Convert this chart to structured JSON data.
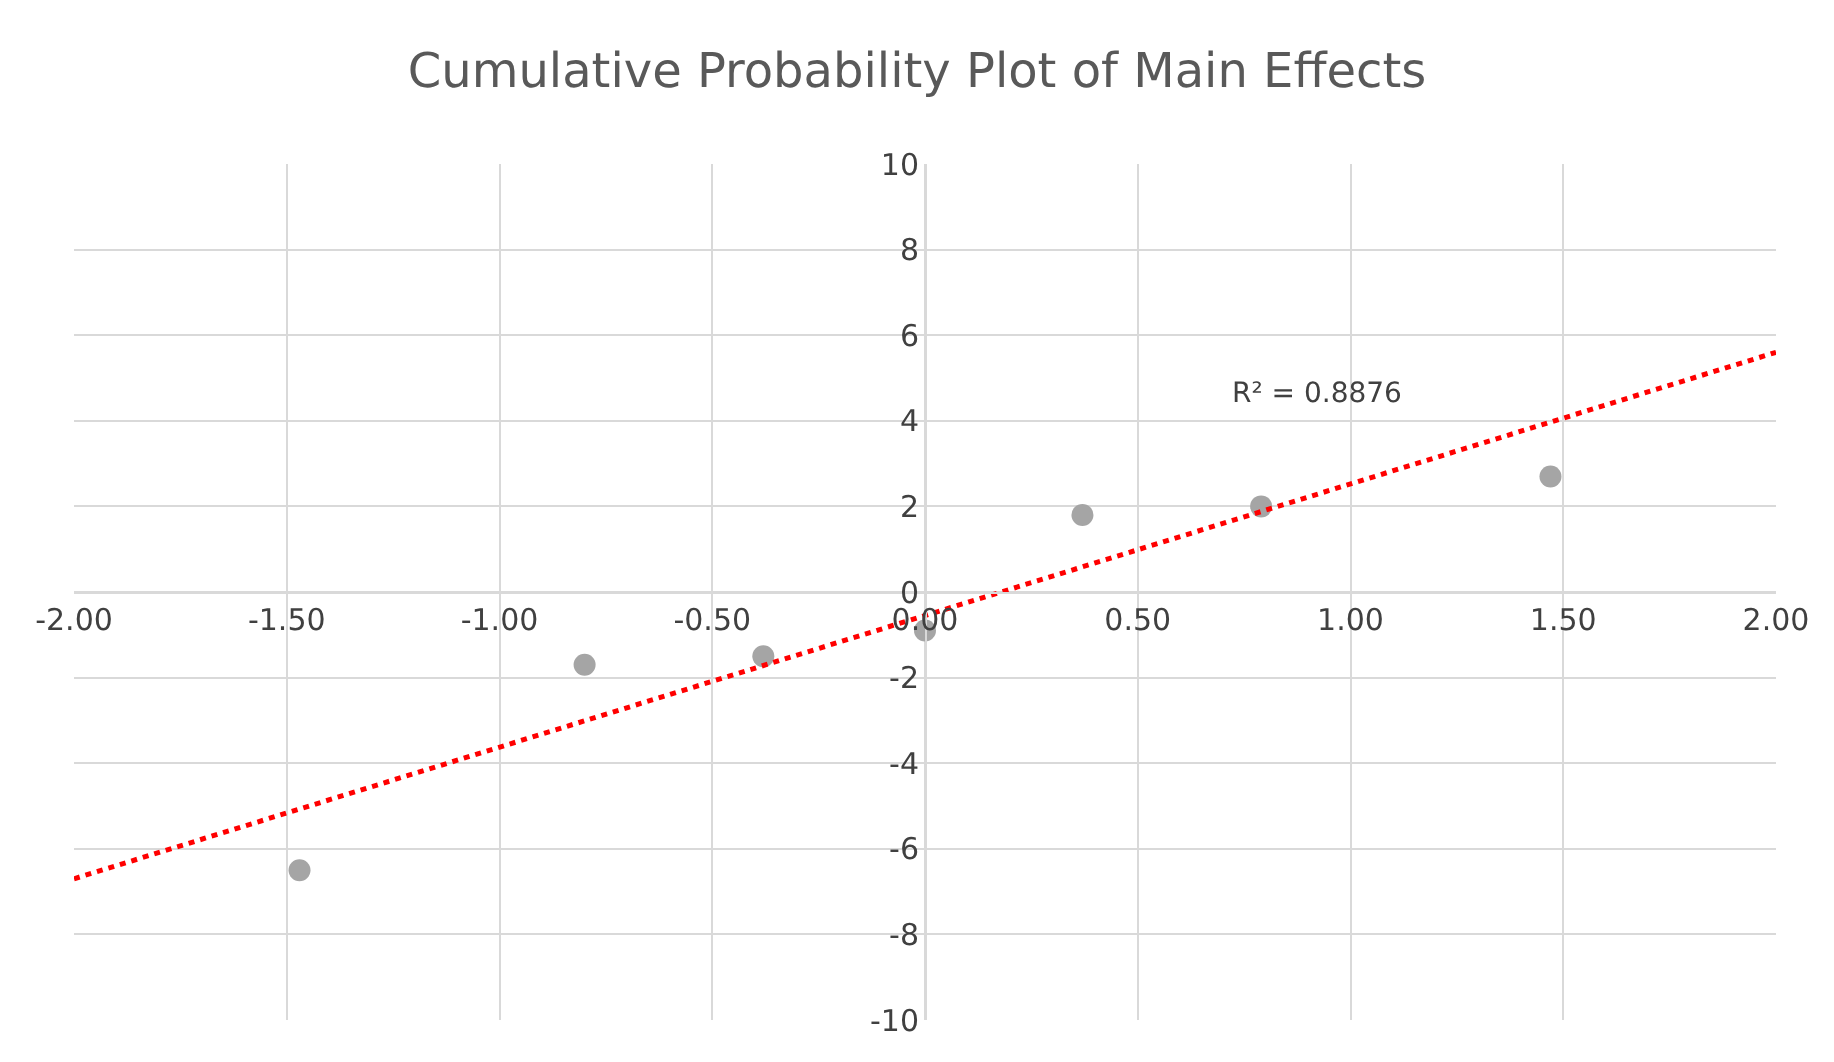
{
  "chart_data": {
    "type": "scatter",
    "title": "Cumulative Probability Plot of Main Effects",
    "series": [
      {
        "color": "#a5a5a5",
        "marker": "circle",
        "x": [
          -1.47,
          -0.8,
          -0.38,
          0.0,
          0.37,
          0.79,
          1.47
        ],
        "values": [
          -6.5,
          -1.7,
          -1.5,
          -0.9,
          1.8,
          2.0,
          2.7
        ]
      },
      {
        "type": "line",
        "color": "#ff0000",
        "line_style": "dotted",
        "marker": "none",
        "x": [
          -2.0,
          2.0
        ],
        "values": [
          -6.7,
          5.6
        ]
      }
    ],
    "annotations": [
      "R² = 0.8876"
    ],
    "xlim": [
      -2,
      2
    ],
    "xticks": [
      {
        "value": -2,
        "label": "-2.00"
      },
      {
        "value": -1.5,
        "label": "-1.50"
      },
      {
        "value": -1,
        "label": "-1.00"
      },
      {
        "value": -0.5,
        "label": "-0.50"
      },
      {
        "value": 0,
        "label": "0.00"
      },
      {
        "value": 0.5,
        "label": "0.50"
      },
      {
        "value": 1,
        "label": "1.00"
      },
      {
        "value": 1.5,
        "label": "1.50"
      },
      {
        "value": 2,
        "label": "2.00"
      }
    ],
    "ylim": [
      -10,
      10
    ],
    "yticks": [
      -10,
      -8,
      -6,
      -4,
      -2,
      0,
      2,
      4,
      6,
      8,
      10
    ],
    "grid": true
  }
}
